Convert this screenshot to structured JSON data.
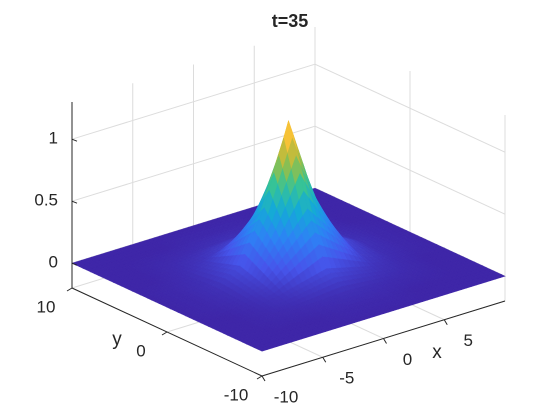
{
  "chart_data": {
    "type": "surface",
    "title": "t=35",
    "xlabel": "x",
    "ylabel": "y",
    "x": [
      -10,
      -8,
      -6,
      -4,
      -2,
      0,
      2,
      4,
      6,
      8,
      10
    ],
    "y": [
      -10,
      -8,
      -6,
      -4,
      -2,
      0,
      2,
      4,
      6,
      8,
      10
    ],
    "z": [
      [
        0,
        0,
        0,
        0,
        0,
        0,
        0,
        0,
        0,
        0,
        0
      ],
      [
        0,
        0,
        0,
        0,
        0.01,
        0.01,
        0.01,
        0,
        0,
        0,
        0
      ],
      [
        0,
        0,
        0.01,
        0.02,
        0.03,
        0.04,
        0.03,
        0.02,
        0.01,
        0,
        0
      ],
      [
        0,
        0,
        0.02,
        0.05,
        0.1,
        0.15,
        0.1,
        0.05,
        0.02,
        0,
        0
      ],
      [
        0,
        0.01,
        0.03,
        0.1,
        0.33,
        0.56,
        0.33,
        0.1,
        0.03,
        0.01,
        0
      ],
      [
        0,
        0.01,
        0.04,
        0.15,
        0.56,
        1.2,
        0.56,
        0.15,
        0.04,
        0.01,
        0
      ],
      [
        0,
        0.01,
        0.03,
        0.1,
        0.33,
        0.56,
        0.33,
        0.1,
        0.03,
        0.01,
        0
      ],
      [
        0,
        0,
        0.02,
        0.05,
        0.1,
        0.15,
        0.1,
        0.05,
        0.02,
        0,
        0
      ],
      [
        0,
        0,
        0.01,
        0.02,
        0.03,
        0.04,
        0.03,
        0.02,
        0.01,
        0,
        0
      ],
      [
        0,
        0,
        0,
        0,
        0.01,
        0.01,
        0.01,
        0,
        0,
        0,
        0
      ],
      [
        0,
        0,
        0,
        0,
        0,
        0,
        0,
        0,
        0,
        0,
        0
      ]
    ],
    "colormap": "parula",
    "xlim": [
      -10,
      10
    ],
    "ylim": [
      -10,
      10
    ],
    "zlim": [
      -0.2,
      1.3
    ],
    "xticks": [
      -10,
      -5,
      0,
      5
    ],
    "yticks": [
      -10,
      0,
      10
    ],
    "zticks": [
      0,
      0.5,
      1
    ],
    "grid": true
  }
}
